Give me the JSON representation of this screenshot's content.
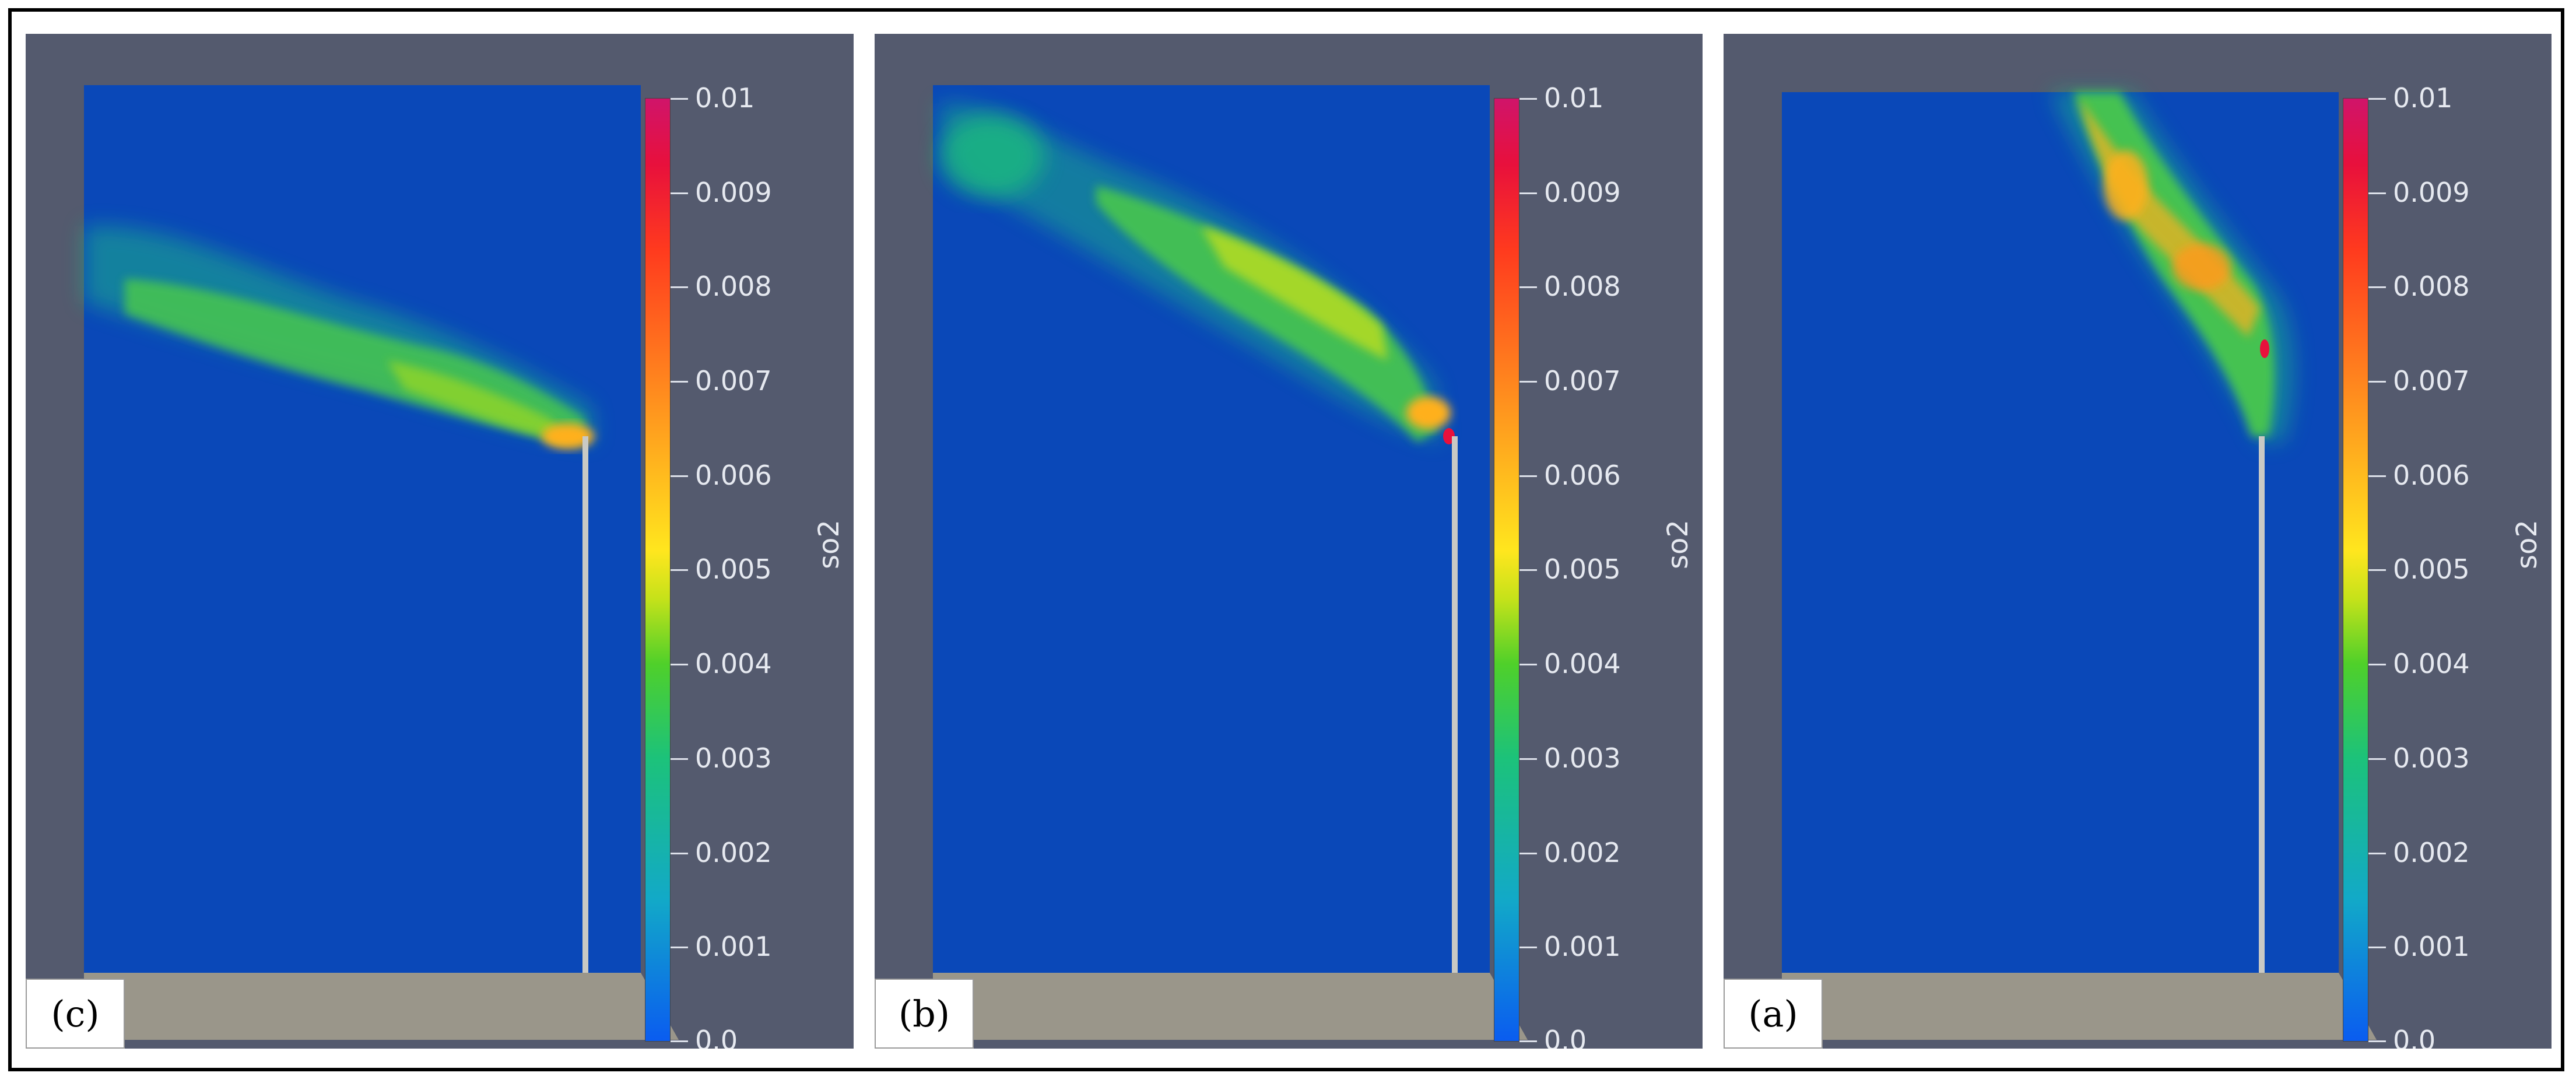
{
  "panels": [
    {
      "label": "(c)",
      "colorbar_title": "so2",
      "plume": "horizontal-left"
    },
    {
      "label": "(b)",
      "colorbar_title": "so2",
      "plume": "diagonal-left"
    },
    {
      "label": "(a)",
      "colorbar_title": "so2",
      "plume": "steep-up"
    }
  ],
  "colorbar": {
    "ticks": [
      "0.01",
      "0.009",
      "0.008",
      "0.007",
      "0.006",
      "0.005",
      "0.004",
      "0.003",
      "0.002",
      "0.001",
      "0.0"
    ],
    "colors": [
      "#0a5cf0",
      "#12a9c8",
      "#1cc27a",
      "#4fd02a",
      "#c6e21a",
      "#ffe61e",
      "#ffb01e",
      "#ff7a1e",
      "#ff3a1e",
      "#e8103c",
      "#d0146a"
    ]
  },
  "scene_colors": {
    "background": "#545a6e",
    "domain": "#0a48b8",
    "ground": "#9a968a",
    "stack": "#c9c9c4"
  }
}
